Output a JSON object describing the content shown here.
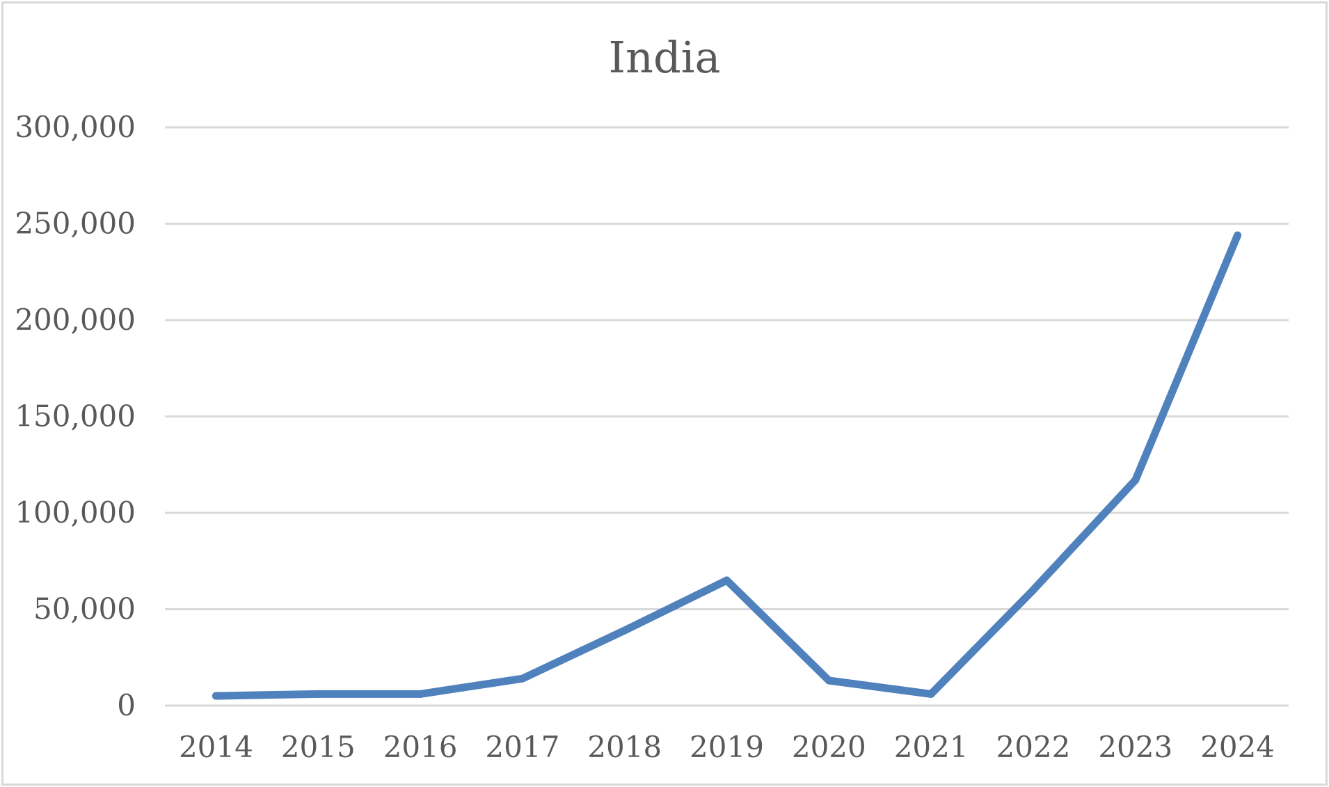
{
  "chart_data": {
    "type": "line",
    "title": "India",
    "xlabel": "",
    "ylabel": "",
    "categories": [
      "2014",
      "2015",
      "2016",
      "2017",
      "2018",
      "2019",
      "2020",
      "2021",
      "2022",
      "2023",
      "2024"
    ],
    "series": [
      {
        "values": [
          5000,
          6000,
          6000,
          14000,
          39000,
          65000,
          13000,
          6000,
          60000,
          117000,
          244000
        ]
      }
    ],
    "ylim": [
      0,
      300000
    ],
    "yticks": [
      0,
      50000,
      100000,
      150000,
      200000,
      250000,
      300000
    ],
    "ytick_labels": [
      "0",
      "50,000",
      "100,000",
      "150,000",
      "200,000",
      "250,000",
      "300,000"
    ],
    "grid": true,
    "legend": "none",
    "colors": {
      "series": "#4f81bd",
      "grid": "#d9d9d9",
      "text": "#595959"
    }
  }
}
